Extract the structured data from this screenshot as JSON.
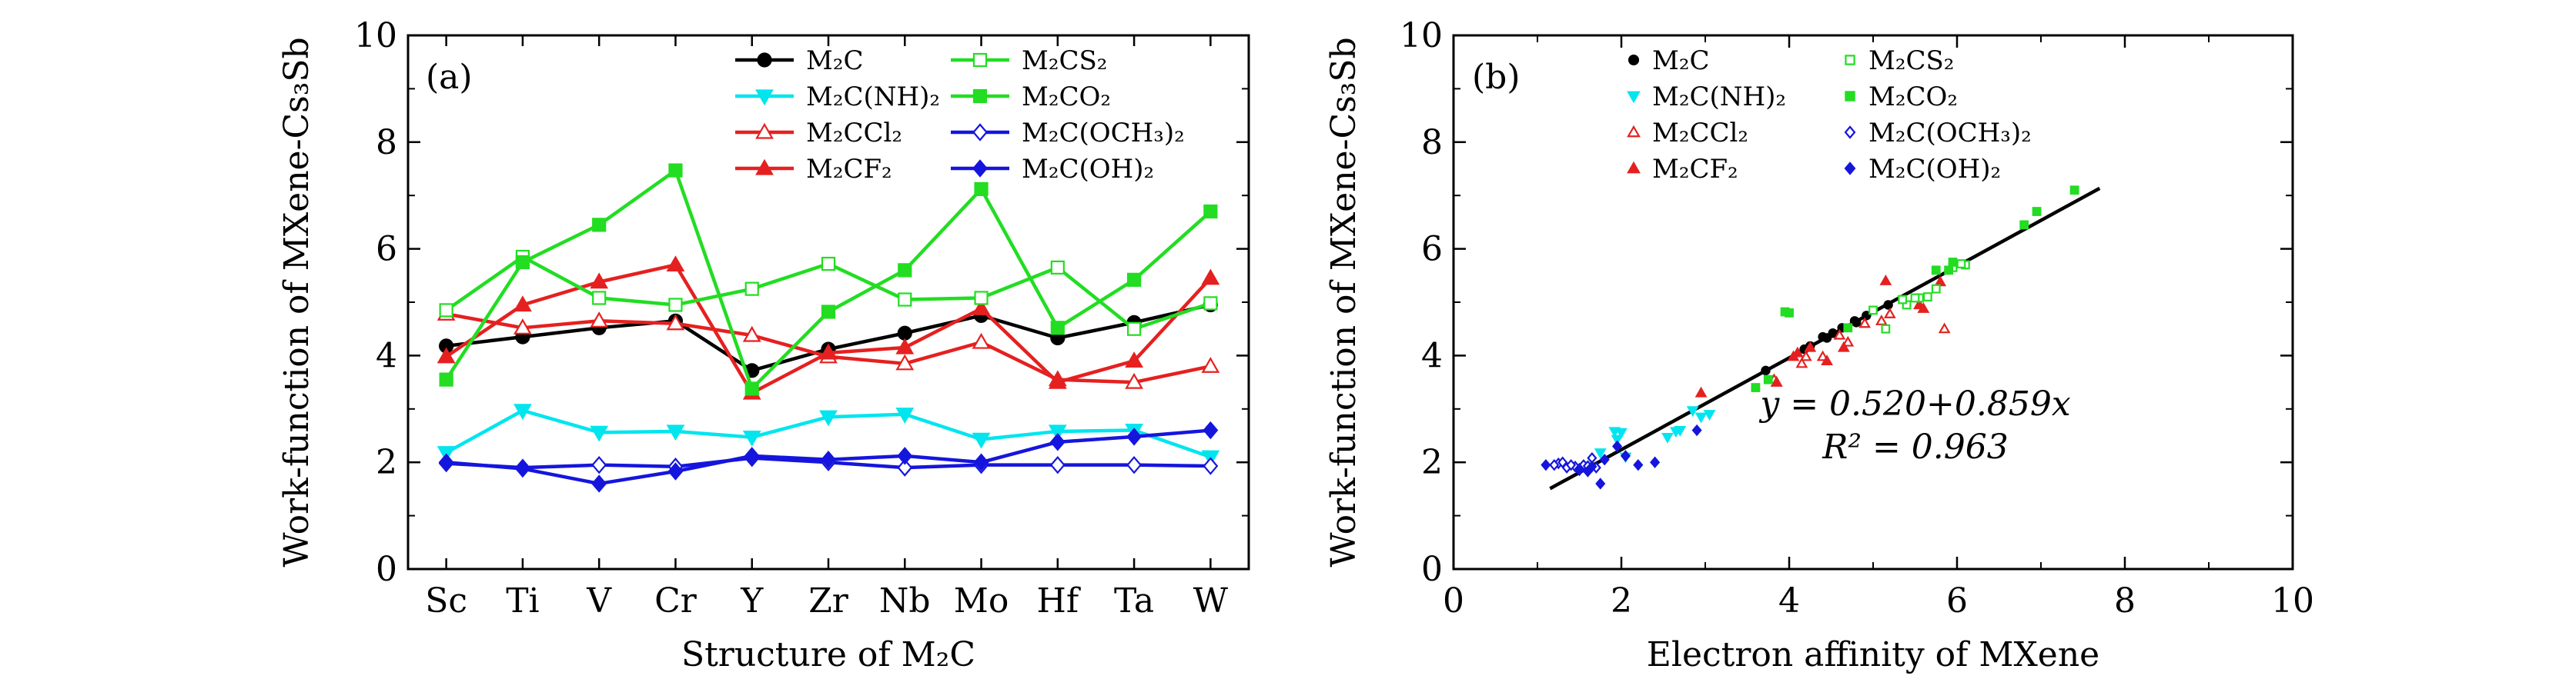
{
  "chart_data": [
    {
      "type": "line",
      "panel_label": "(a)",
      "xlabel": "Structure of M₂C",
      "ylabel": "Work-function of MXene-Cs₃Sb",
      "categories": [
        "Sc",
        "Ti",
        "V",
        "Cr",
        "Y",
        "Zr",
        "Nb",
        "Mo",
        "Hf",
        "Ta",
        "W"
      ],
      "ylim": [
        0,
        10
      ],
      "yticks": [
        0,
        2,
        4,
        6,
        8,
        10
      ],
      "legend_position": "top",
      "grid": false,
      "series": [
        {
          "name": "M₂C",
          "color": "#000000",
          "marker": "circle",
          "fill": true,
          "values": [
            4.18,
            4.35,
            4.52,
            4.65,
            3.72,
            4.12,
            4.42,
            4.75,
            4.33,
            4.62,
            4.95
          ]
        },
        {
          "name": "M₂C(NH)₂",
          "color": "#00E5EE",
          "marker": "triangle-down",
          "fill": true,
          "values": [
            2.18,
            2.97,
            2.56,
            2.58,
            2.47,
            2.85,
            2.9,
            2.43,
            2.58,
            2.6,
            2.1
          ]
        },
        {
          "name": "M₂CCl₂",
          "color": "#E52020",
          "marker": "triangle-up",
          "fill": false,
          "values": [
            4.78,
            4.52,
            4.65,
            4.6,
            4.38,
            3.98,
            3.85,
            4.25,
            3.55,
            3.5,
            3.8
          ]
        },
        {
          "name": "M₂CF₂",
          "color": "#E52020",
          "marker": "triangle-up",
          "fill": true,
          "values": [
            3.98,
            4.95,
            5.38,
            5.7,
            3.3,
            4.05,
            4.15,
            4.88,
            3.5,
            3.9,
            5.45
          ]
        },
        {
          "name": "M₂CS₂",
          "color": "#22DD22",
          "marker": "square",
          "fill": false,
          "values": [
            4.85,
            5.85,
            5.08,
            4.95,
            5.25,
            5.72,
            5.05,
            5.08,
            5.65,
            4.5,
            4.98
          ]
        },
        {
          "name": "M₂CO₂",
          "color": "#22DD22",
          "marker": "square",
          "fill": true,
          "values": [
            3.55,
            5.75,
            6.45,
            7.47,
            3.38,
            4.82,
            5.6,
            7.12,
            4.52,
            5.42,
            6.7
          ]
        },
        {
          "name": "M₂C(OCH₃)₂",
          "color": "#1515DD",
          "marker": "diamond",
          "fill": false,
          "values": [
            1.98,
            1.9,
            1.95,
            1.92,
            2.08,
            2.0,
            1.9,
            1.95,
            1.95,
            1.95,
            1.93
          ]
        },
        {
          "name": "M₂C(OH)₂",
          "color": "#1515DD",
          "marker": "diamond",
          "fill": true,
          "values": [
            2.0,
            1.88,
            1.6,
            1.83,
            2.12,
            2.05,
            2.12,
            2.0,
            2.38,
            2.48,
            2.6
          ]
        }
      ]
    },
    {
      "type": "scatter",
      "panel_label": "(b)",
      "xlabel": "Electron affinity of MXene",
      "ylabel": "Work-function of MXene-Cs₃Sb",
      "xlim": [
        0,
        10
      ],
      "ylim": [
        0,
        10
      ],
      "xticks": [
        0,
        2,
        4,
        6,
        8,
        10
      ],
      "yticks": [
        0,
        2,
        4,
        6,
        8,
        10
      ],
      "legend_position": "top",
      "grid": false,
      "fit": {
        "intercept": 0.52,
        "slope": 0.859,
        "x_range": [
          1.15,
          7.7
        ],
        "color": "#000000"
      },
      "equation_text": "y = 0.520+0.859x",
      "r2_text": "R² = 0.963",
      "series": [
        {
          "name": "M₂C",
          "color": "#000000",
          "marker": "circle",
          "fill": true,
          "points": [
            [
              4.25,
              4.18
            ],
            [
              4.4,
              4.35
            ],
            [
              4.63,
              4.52
            ],
            [
              4.78,
              4.65
            ],
            [
              3.72,
              3.72
            ],
            [
              4.18,
              4.12
            ],
            [
              4.52,
              4.42
            ],
            [
              4.92,
              4.75
            ],
            [
              4.45,
              4.33
            ],
            [
              4.8,
              4.62
            ],
            [
              5.18,
              4.95
            ]
          ]
        },
        {
          "name": "M₂C(NH)₂",
          "color": "#00E5EE",
          "marker": "triangle-down",
          "fill": true,
          "points": [
            [
              1.75,
              2.18
            ],
            [
              2.85,
              2.97
            ],
            [
              2.0,
              2.56
            ],
            [
              1.92,
              2.58
            ],
            [
              2.55,
              2.47
            ],
            [
              2.95,
              2.85
            ],
            [
              3.05,
              2.9
            ],
            [
              1.95,
              2.43
            ],
            [
              2.65,
              2.58
            ],
            [
              2.7,
              2.6
            ],
            [
              2.05,
              2.1
            ]
          ]
        },
        {
          "name": "M₂CCl₂",
          "color": "#E52020",
          "marker": "triangle-up",
          "fill": false,
          "points": [
            [
              5.85,
              4.5
            ],
            [
              5.2,
              4.78
            ],
            [
              5.1,
              4.65
            ],
            [
              4.9,
              4.6
            ],
            [
              4.6,
              4.38
            ],
            [
              4.4,
              3.98
            ],
            [
              3.85,
              3.5
            ],
            [
              4.7,
              4.25
            ],
            [
              4.2,
              3.98
            ],
            [
              3.82,
              3.55
            ],
            [
              4.15,
              3.85
            ]
          ]
        },
        {
          "name": "M₂CF₂",
          "color": "#E52020",
          "marker": "triangle-up",
          "fill": true,
          "points": [
            [
              4.05,
              3.98
            ],
            [
              5.55,
              4.95
            ],
            [
              5.8,
              5.38
            ],
            [
              5.15,
              5.4
            ],
            [
              2.95,
              3.3
            ],
            [
              4.1,
              4.05
            ],
            [
              4.25,
              4.15
            ],
            [
              5.6,
              4.88
            ],
            [
              3.85,
              3.5
            ],
            [
              4.45,
              3.9
            ],
            [
              4.65,
              4.15
            ]
          ]
        },
        {
          "name": "M₂CS₂",
          "color": "#22DD22",
          "marker": "square",
          "fill": false,
          "points": [
            [
              5.15,
              4.5
            ],
            [
              6.1,
              5.7
            ],
            [
              5.55,
              5.08
            ],
            [
              5.4,
              4.95
            ],
            [
              5.75,
              5.25
            ],
            [
              6.05,
              5.72
            ],
            [
              5.35,
              5.05
            ],
            [
              5.5,
              5.08
            ],
            [
              5.95,
              5.65
            ],
            [
              5.0,
              4.85
            ],
            [
              5.65,
              5.1
            ]
          ]
        },
        {
          "name": "M₂CO₂",
          "color": "#22DD22",
          "marker": "square",
          "fill": true,
          "points": [
            [
              3.75,
              3.55
            ],
            [
              5.9,
              5.6
            ],
            [
              6.8,
              6.45
            ],
            [
              7.4,
              7.1
            ],
            [
              3.6,
              3.4
            ],
            [
              3.95,
              4.82
            ],
            [
              5.75,
              5.6
            ],
            [
              6.95,
              6.7
            ],
            [
              4.7,
              4.52
            ],
            [
              5.95,
              5.75
            ],
            [
              4.0,
              4.8
            ]
          ]
        },
        {
          "name": "M₂C(OCH₃)₂",
          "color": "#1515DD",
          "marker": "diamond",
          "fill": false,
          "points": [
            [
              1.25,
              1.98
            ],
            [
              1.35,
              1.9
            ],
            [
              1.55,
              1.95
            ],
            [
              1.45,
              1.92
            ],
            [
              1.65,
              2.08
            ],
            [
              1.3,
              2.0
            ],
            [
              1.7,
              1.9
            ],
            [
              1.4,
              1.95
            ],
            [
              1.5,
              1.85
            ],
            [
              1.2,
              1.95
            ],
            [
              1.6,
              1.93
            ]
          ]
        },
        {
          "name": "M₂C(OH)₂",
          "color": "#1515DD",
          "marker": "diamond",
          "fill": true,
          "points": [
            [
              1.1,
              1.95
            ],
            [
              1.5,
              1.88
            ],
            [
              1.75,
              1.6
            ],
            [
              1.6,
              1.83
            ],
            [
              2.05,
              2.12
            ],
            [
              2.2,
              1.95
            ],
            [
              1.95,
              2.3
            ],
            [
              2.4,
              2.0
            ],
            [
              2.9,
              2.6
            ],
            [
              1.8,
              2.05
            ],
            [
              1.65,
              1.92
            ]
          ]
        }
      ]
    }
  ]
}
